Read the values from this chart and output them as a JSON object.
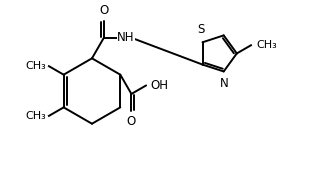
{
  "background_color": "#ffffff",
  "line_color": "#000000",
  "line_width": 1.4,
  "font_size": 8.5,
  "figsize": [
    3.18,
    1.8
  ],
  "dpi": 100,
  "xlim": [
    0,
    9.5
  ],
  "ylim": [
    0,
    5.4
  ]
}
